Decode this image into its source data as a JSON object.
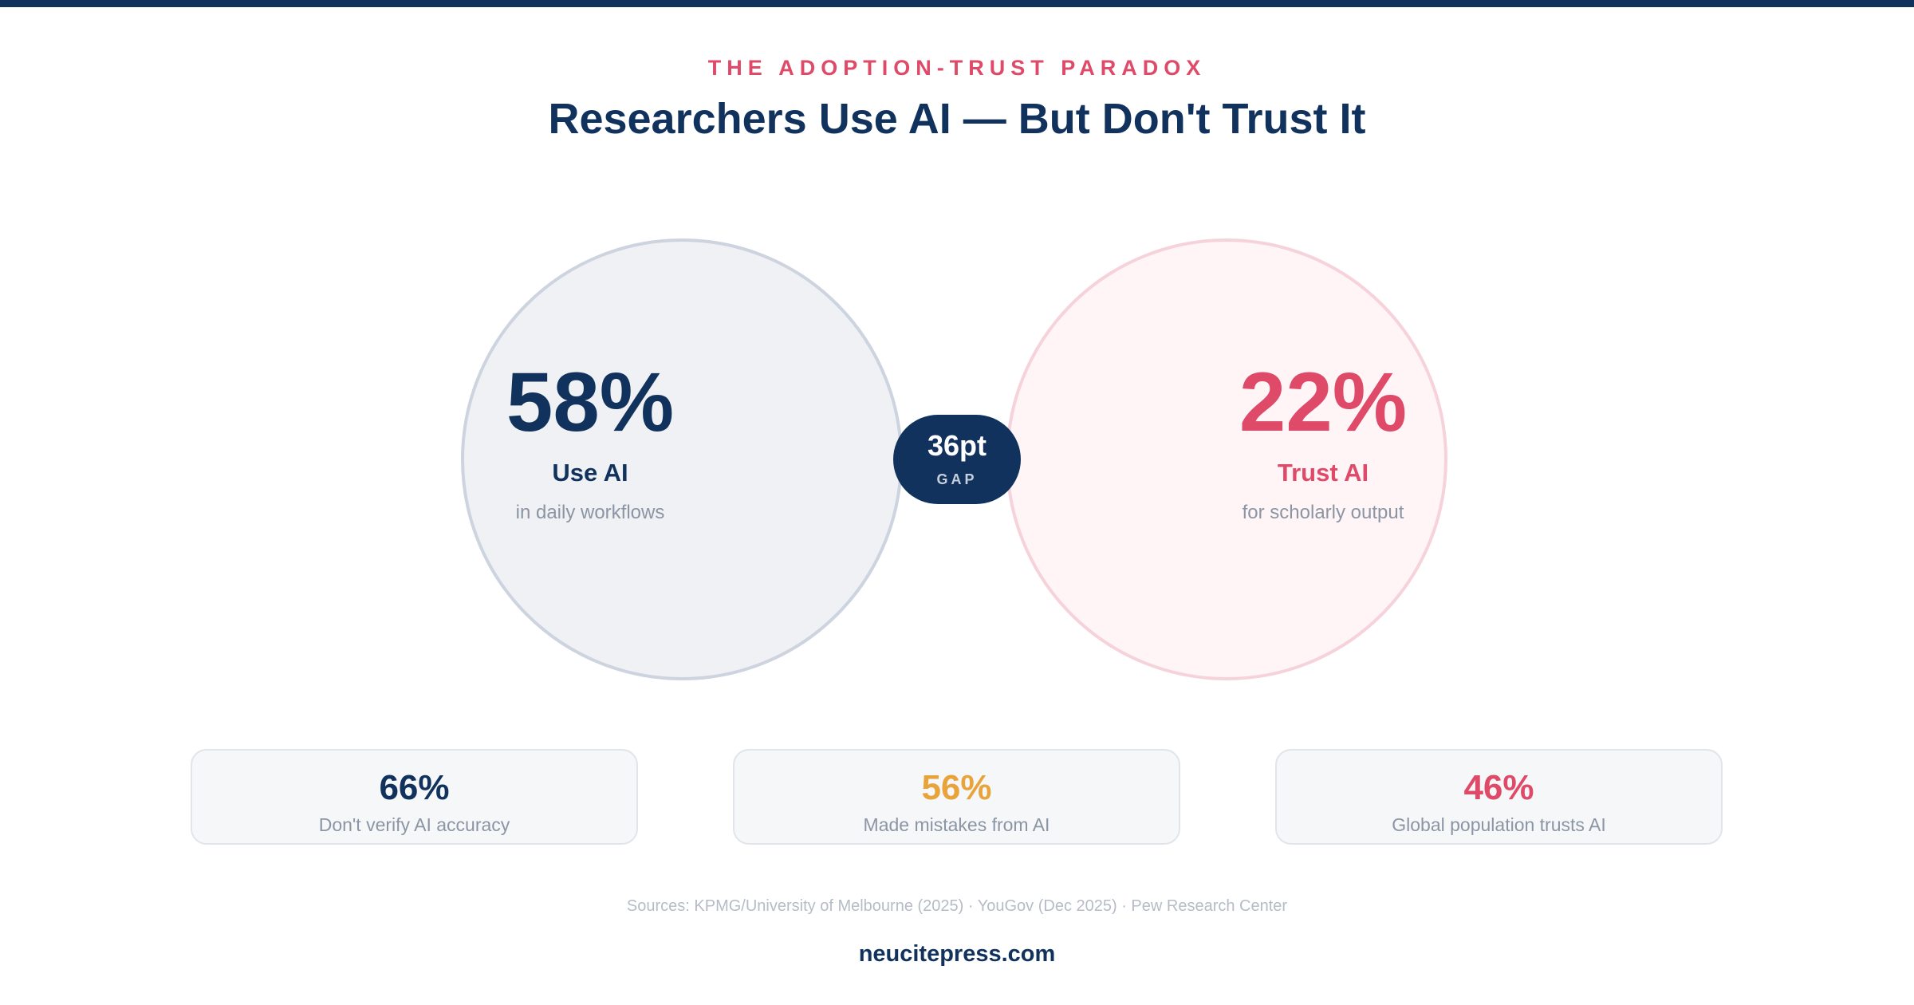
{
  "colors": {
    "navy": "#12325e",
    "accent_red": "#de4a67",
    "accent_orange": "#e8a33a",
    "muted_text": "#8c95a4",
    "left_circle_fill": "#eff1f4",
    "right_circle_fill": "#fff5f7"
  },
  "header": {
    "eyebrow": "THE ADOPTION-TRUST PARADOX",
    "title": "Researchers Use AI — But Don't Trust It"
  },
  "comparison": {
    "left": {
      "value": "58%",
      "label": "Use AI",
      "sub": "in daily workflows"
    },
    "gap": {
      "value": "36pt",
      "label": "GAP"
    },
    "right": {
      "value": "22%",
      "label": "Trust AI",
      "sub": "for scholarly output"
    }
  },
  "cards": [
    {
      "value": "66%",
      "text": "Don't verify AI accuracy",
      "color": "#12325e"
    },
    {
      "value": "56%",
      "text": "Made mistakes from AI",
      "color": "#e8a33a"
    },
    {
      "value": "46%",
      "text": "Global population trusts AI",
      "color": "#de4a67"
    }
  ],
  "footer": {
    "sources": "Sources: KPMG/University of Melbourne (2025) · YouGov (Dec 2025) · Pew Research Center",
    "site": "neucitepress.com"
  }
}
